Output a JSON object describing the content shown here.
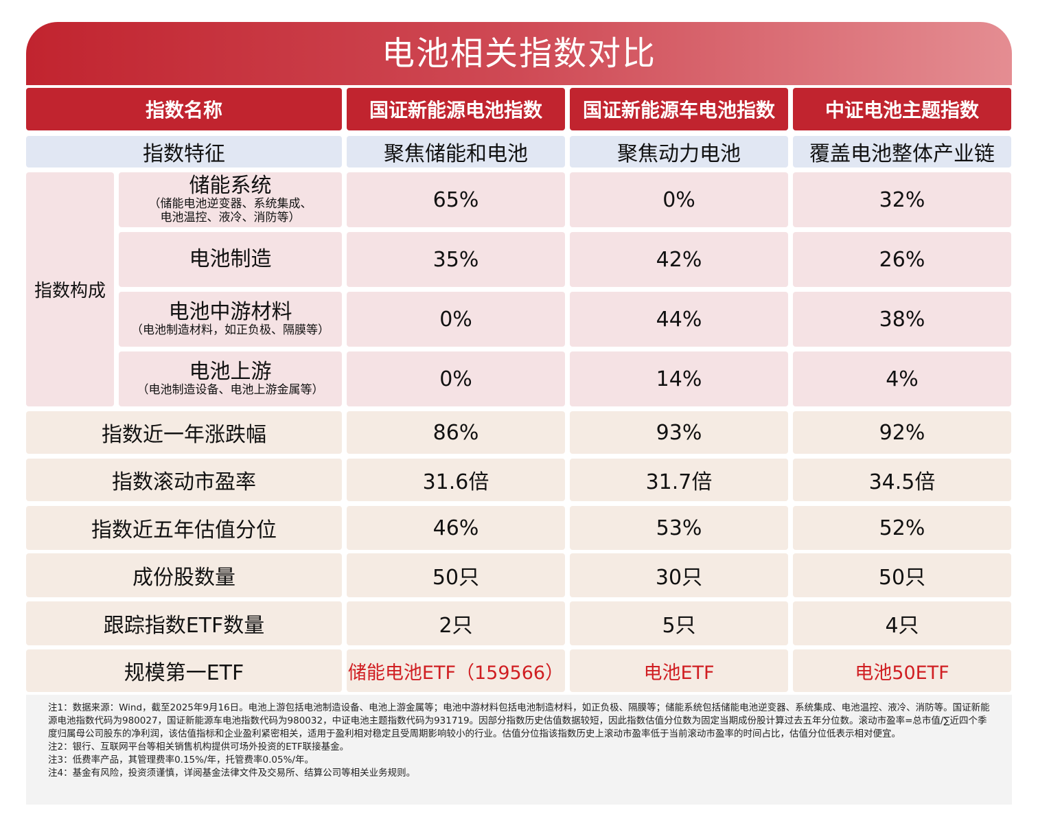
{
  "title": "电池相关指数对比",
  "header": [
    "指数名称",
    "国证新能源电池指数",
    "国证新能源车电池指数",
    "中证电池主题指数"
  ],
  "feature": {
    "label": "指数特征",
    "values": [
      "聚焦储能和电池",
      "聚焦动力电池",
      "覆盖电池整体产业链"
    ]
  },
  "composition": {
    "label": "指数构成",
    "rows": [
      {
        "name": "储能系统",
        "note": "（储能电池逆变器、系统集成、\n电池温控、液冷、消防等）",
        "values": [
          "65%",
          "0%",
          "32%"
        ]
      },
      {
        "name": "电池制造",
        "note": "",
        "values": [
          "35%",
          "42%",
          "26%"
        ]
      },
      {
        "name": "电池中游材料",
        "note": "（电池制造材料，如正负极、隔膜等）",
        "values": [
          "0%",
          "44%",
          "38%"
        ]
      },
      {
        "name": "电池上游",
        "note": "（电池制造设备、电池上游金属等）",
        "values": [
          "0%",
          "14%",
          "4%"
        ]
      }
    ]
  },
  "metrics": [
    {
      "name": "指数近一年涨跌幅",
      "values": [
        "86%",
        "93%",
        "92%"
      ]
    },
    {
      "name": "指数滚动市盈率",
      "values": [
        "31.6倍",
        "31.7倍",
        "34.5倍"
      ]
    },
    {
      "name": "指数近五年估值分位",
      "values": [
        "46%",
        "53%",
        "52%"
      ]
    },
    {
      "name": "成份股数量",
      "values": [
        "50只",
        "30只",
        "50只"
      ]
    },
    {
      "name": "跟踪指数ETF数量",
      "values": [
        "2只",
        "5只",
        "4只"
      ]
    },
    {
      "name": "规模第一ETF",
      "values": [
        "储能电池ETF（159566）",
        "电池ETF",
        "电池50ETF"
      ],
      "highlight_color": "#d01e22"
    }
  ],
  "notes": [
    "注1：数据来源：Wind，截至2025年9月16日。电池上游包括电池制造设备、电池上游金属等；电池中游材料包括电池制造材料，如正负极、隔膜等；储能系统包括储能电池逆变器、系统集成、电池温控、液冷、消防等。国证新能源电池指数代码为980027，国证新能源车电池指数代码为980032，中证电池主题指数代码为931719。因部分指数历史估值数据较短，因此指数估值分位数为固定当期成份股计算过去五年分位数。滚动市盈率=总市值/∑近四个季度归属母公司股东的净利润，该估值指标和企业盈利紧密相关，适用于盈利相对稳定且受周期影响较小的行业。估值分位指该指数历史上滚动市盈率低于当前滚动市盈率的时间占比，估值分位低表示相对便宜。",
    "注2：银行、互联网平台等相关销售机构提供可场外投资的ETF联接基金。",
    "注3：低费率产品，其管理费率0.15%/年，托管费率0.05%/年。",
    "注4：基金有风险，投资须谨慎，详阅基金法律文件及交易所、结算公司等相关业务规则。"
  ]
}
